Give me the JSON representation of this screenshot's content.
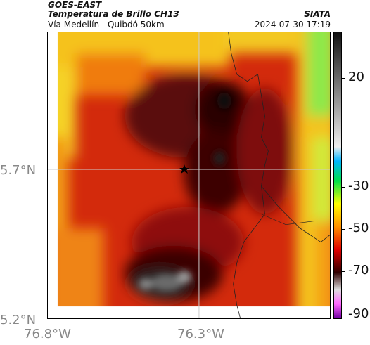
{
  "header": {
    "satellite": "GOES-EAST",
    "product": "Temperatura de Brillo CH13",
    "region": "Vía Medellín - Quibdó 50km",
    "brand": "SIATA",
    "timestamp": "2024-07-30 17:19"
  },
  "axes": {
    "lat_labels": [
      "5.7°N",
      "5.2°N"
    ],
    "lon_labels": [
      "76.8°W",
      "76.3°W"
    ]
  },
  "colorbar": {
    "ticks": [
      "20",
      "-30",
      "-50",
      "-70",
      "-90"
    ],
    "colors": [
      "#1a1a1a",
      "#e6e6e6",
      "#00b4ff",
      "#00ff00",
      "#ffff00",
      "#ff8000",
      "#e00000",
      "#400000",
      "#ff66ff",
      "#8000a0"
    ]
  },
  "markers": {
    "point": "star-marker"
  },
  "palette": {
    "cold_gray": "#555555",
    "dark": "#3a0606",
    "maroon": "#7a0c0c",
    "red": "#c61a0a",
    "orange_red": "#e8420e",
    "orange": "#f28a10",
    "yellow": "#f7e42a",
    "yellow_green": "#c6ef3a",
    "green": "#4ee858",
    "cyan": "#1fd6c8"
  }
}
